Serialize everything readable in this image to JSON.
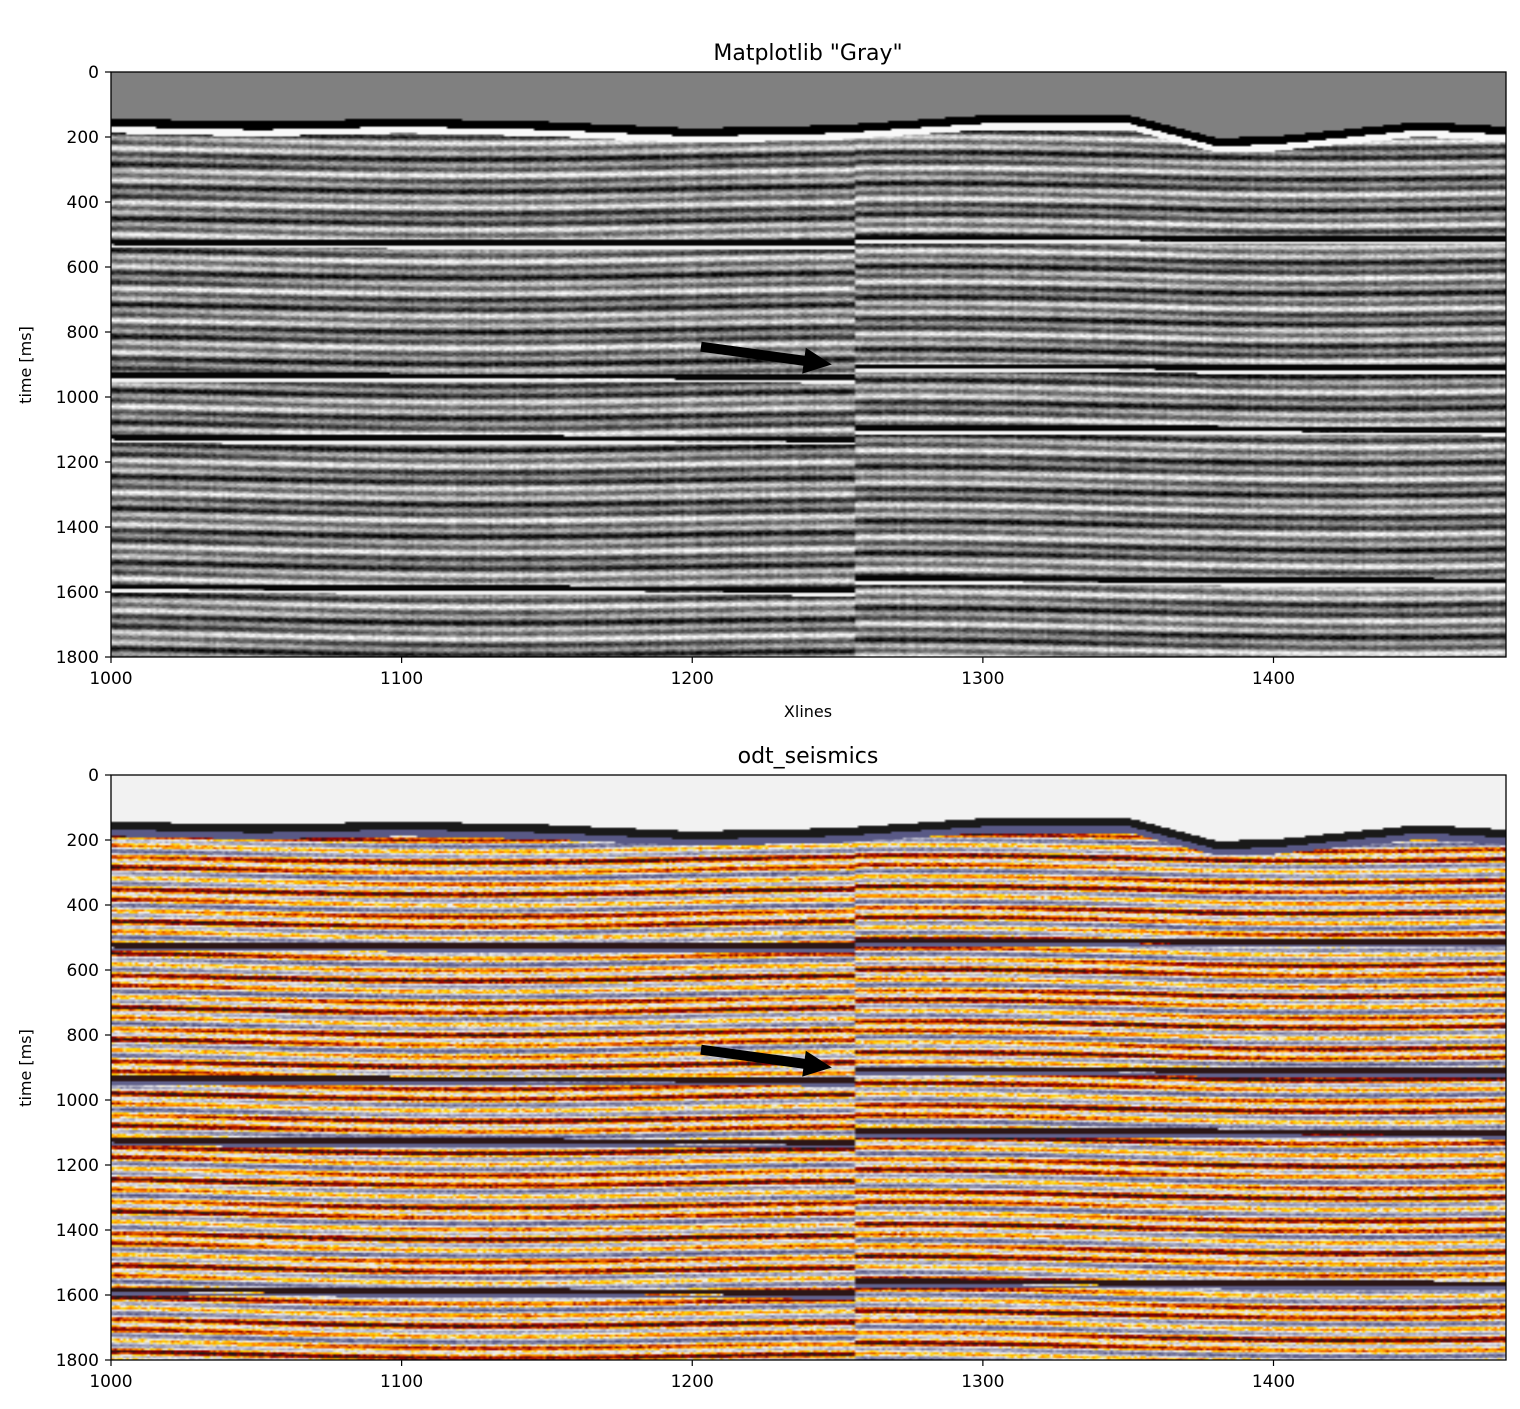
{
  "chart_data": [
    {
      "type": "heatmap",
      "title": "Matplotlib \"Gray\"",
      "xlabel": "Xlines",
      "ylabel": "time [ms]",
      "xlim": [
        1000,
        1480
      ],
      "ylim": [
        1800,
        0
      ],
      "xticks": [
        1000,
        1100,
        1200,
        1300,
        1400
      ],
      "yticks": [
        0,
        200,
        400,
        600,
        800,
        1000,
        1200,
        1400,
        1600,
        1800
      ],
      "colormap": "gray",
      "colors": {
        "low": "#000000",
        "mid": "#808080",
        "high": "#ffffff"
      },
      "seafloor": {
        "x": [
          1000,
          1050,
          1100,
          1150,
          1200,
          1250,
          1300,
          1350,
          1380,
          1400,
          1450,
          1480
        ],
        "y": [
          140,
          150,
          140,
          150,
          170,
          160,
          130,
          130,
          200,
          195,
          150,
          165
        ]
      },
      "annotation": {
        "type": "arrow",
        "from": [
          1203,
          845
        ],
        "to": [
          1248,
          900
        ],
        "color": "#000000"
      }
    },
    {
      "type": "heatmap",
      "title": "odt_seismics",
      "xlabel": "",
      "ylabel": "time [ms]",
      "xlim": [
        1000,
        1480
      ],
      "ylim": [
        1800,
        0
      ],
      "xticks": [
        1000,
        1100,
        1200,
        1300,
        1400
      ],
      "yticks": [
        0,
        200,
        400,
        600,
        800,
        1000,
        1200,
        1400,
        1600,
        1800
      ],
      "colormap": "odt_seismics",
      "colors": {
        "low": "#1a1a1a",
        "negative": "#9a0000",
        "mid_low": "#ff7f00",
        "mid": "#ffd000",
        "zero": "#f2f2f2",
        "high": "#505080"
      },
      "seafloor": {
        "x": [
          1000,
          1050,
          1100,
          1150,
          1200,
          1250,
          1300,
          1350,
          1380,
          1400,
          1450,
          1480
        ],
        "y": [
          140,
          150,
          140,
          150,
          170,
          160,
          130,
          130,
          200,
          195,
          150,
          165
        ]
      },
      "annotation": {
        "type": "arrow",
        "from": [
          1203,
          845
        ],
        "to": [
          1248,
          900
        ],
        "color": "#000000"
      }
    }
  ]
}
